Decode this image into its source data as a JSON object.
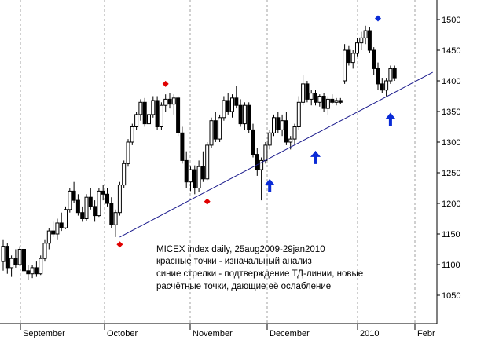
{
  "chart_data": {
    "type": "candlestick",
    "annotations": [
      "MICEX index daily, 25aug2009-29jan2010",
      "красные точки - изначальный анализ",
      "синие стрелки - подтверждение ТД-линии, новые",
      "расчётные точки, дающие её ослабление"
    ],
    "y_axis": {
      "ticks": [
        1050,
        1100,
        1150,
        1200,
        1250,
        1300,
        1350,
        1400,
        1450,
        1500
      ],
      "ylim": [
        1000,
        1540
      ],
      "side": "right"
    },
    "x_axis": {
      "month_labels": [
        "September",
        "October",
        "November",
        "December",
        "2010",
        "Febr"
      ]
    },
    "grid": "vertical dashed lines at month boundaries",
    "colors": {
      "up": "#ffffff",
      "down": "#000000",
      "trendline": "#1a1a8c",
      "red_marker": "#e00000",
      "blue_arrow": "#0a2bd6"
    },
    "candles": [
      {
        "o": 1105,
        "h": 1140,
        "l": 1090,
        "c": 1130
      },
      {
        "o": 1130,
        "h": 1135,
        "l": 1085,
        "c": 1095
      },
      {
        "o": 1095,
        "h": 1115,
        "l": 1080,
        "c": 1110
      },
      {
        "o": 1110,
        "h": 1125,
        "l": 1095,
        "c": 1100
      },
      {
        "o": 1100,
        "h": 1130,
        "l": 1098,
        "c": 1125
      },
      {
        "o": 1125,
        "h": 1128,
        "l": 1085,
        "c": 1090
      },
      {
        "o": 1090,
        "h": 1100,
        "l": 1075,
        "c": 1085
      },
      {
        "o": 1085,
        "h": 1100,
        "l": 1078,
        "c": 1095
      },
      {
        "o": 1095,
        "h": 1105,
        "l": 1080,
        "c": 1085
      },
      {
        "o": 1085,
        "h": 1115,
        "l": 1083,
        "c": 1110
      },
      {
        "o": 1110,
        "h": 1140,
        "l": 1105,
        "c": 1135
      },
      {
        "o": 1135,
        "h": 1160,
        "l": 1125,
        "c": 1155
      },
      {
        "o": 1155,
        "h": 1170,
        "l": 1145,
        "c": 1150
      },
      {
        "o": 1150,
        "h": 1175,
        "l": 1140,
        "c": 1168
      },
      {
        "o": 1168,
        "h": 1185,
        "l": 1155,
        "c": 1160
      },
      {
        "o": 1160,
        "h": 1195,
        "l": 1158,
        "c": 1190
      },
      {
        "o": 1190,
        "h": 1225,
        "l": 1185,
        "c": 1220
      },
      {
        "o": 1220,
        "h": 1235,
        "l": 1200,
        "c": 1205
      },
      {
        "o": 1205,
        "h": 1215,
        "l": 1180,
        "c": 1185
      },
      {
        "o": 1185,
        "h": 1195,
        "l": 1170,
        "c": 1175
      },
      {
        "o": 1175,
        "h": 1215,
        "l": 1172,
        "c": 1210
      },
      {
        "o": 1210,
        "h": 1225,
        "l": 1190,
        "c": 1195
      },
      {
        "o": 1195,
        "h": 1205,
        "l": 1170,
        "c": 1180
      },
      {
        "o": 1180,
        "h": 1225,
        "l": 1178,
        "c": 1220
      },
      {
        "o": 1220,
        "h": 1230,
        "l": 1205,
        "c": 1215
      },
      {
        "o": 1215,
        "h": 1225,
        "l": 1195,
        "c": 1200
      },
      {
        "o": 1200,
        "h": 1210,
        "l": 1160,
        "c": 1165
      },
      {
        "o": 1165,
        "h": 1190,
        "l": 1145,
        "c": 1185
      },
      {
        "o": 1185,
        "h": 1235,
        "l": 1180,
        "c": 1230
      },
      {
        "o": 1230,
        "h": 1270,
        "l": 1225,
        "c": 1265
      },
      {
        "o": 1265,
        "h": 1305,
        "l": 1260,
        "c": 1300
      },
      {
        "o": 1300,
        "h": 1330,
        "l": 1295,
        "c": 1325
      },
      {
        "o": 1325,
        "h": 1350,
        "l": 1320,
        "c": 1345
      },
      {
        "o": 1345,
        "h": 1370,
        "l": 1335,
        "c": 1365
      },
      {
        "o": 1365,
        "h": 1372,
        "l": 1325,
        "c": 1330
      },
      {
        "o": 1330,
        "h": 1350,
        "l": 1315,
        "c": 1345
      },
      {
        "o": 1345,
        "h": 1375,
        "l": 1340,
        "c": 1368
      },
      {
        "o": 1368,
        "h": 1375,
        "l": 1320,
        "c": 1325
      },
      {
        "o": 1325,
        "h": 1365,
        "l": 1320,
        "c": 1360
      },
      {
        "o": 1360,
        "h": 1378,
        "l": 1350,
        "c": 1370
      },
      {
        "o": 1370,
        "h": 1380,
        "l": 1355,
        "c": 1362
      },
      {
        "o": 1362,
        "h": 1378,
        "l": 1345,
        "c": 1372
      },
      {
        "o": 1372,
        "h": 1375,
        "l": 1310,
        "c": 1315
      },
      {
        "o": 1315,
        "h": 1325,
        "l": 1265,
        "c": 1270
      },
      {
        "o": 1270,
        "h": 1285,
        "l": 1225,
        "c": 1235
      },
      {
        "o": 1235,
        "h": 1260,
        "l": 1220,
        "c": 1255
      },
      {
        "o": 1255,
        "h": 1262,
        "l": 1215,
        "c": 1225
      },
      {
        "o": 1225,
        "h": 1270,
        "l": 1218,
        "c": 1260
      },
      {
        "o": 1260,
        "h": 1285,
        "l": 1235,
        "c": 1240
      },
      {
        "o": 1240,
        "h": 1300,
        "l": 1238,
        "c": 1295
      },
      {
        "o": 1295,
        "h": 1340,
        "l": 1290,
        "c": 1335
      },
      {
        "o": 1335,
        "h": 1350,
        "l": 1300,
        "c": 1305
      },
      {
        "o": 1305,
        "h": 1345,
        "l": 1300,
        "c": 1340
      },
      {
        "o": 1340,
        "h": 1375,
        "l": 1335,
        "c": 1368
      },
      {
        "o": 1368,
        "h": 1380,
        "l": 1345,
        "c": 1350
      },
      {
        "o": 1350,
        "h": 1378,
        "l": 1340,
        "c": 1372
      },
      {
        "o": 1372,
        "h": 1392,
        "l": 1355,
        "c": 1360
      },
      {
        "o": 1360,
        "h": 1370,
        "l": 1325,
        "c": 1330
      },
      {
        "o": 1330,
        "h": 1365,
        "l": 1320,
        "c": 1360
      },
      {
        "o": 1360,
        "h": 1365,
        "l": 1315,
        "c": 1320
      },
      {
        "o": 1320,
        "h": 1330,
        "l": 1275,
        "c": 1280
      },
      {
        "o": 1280,
        "h": 1290,
        "l": 1245,
        "c": 1255
      },
      {
        "o": 1255,
        "h": 1275,
        "l": 1205,
        "c": 1270
      },
      {
        "o": 1270,
        "h": 1300,
        "l": 1265,
        "c": 1295
      },
      {
        "o": 1295,
        "h": 1320,
        "l": 1288,
        "c": 1315
      },
      {
        "o": 1315,
        "h": 1345,
        "l": 1310,
        "c": 1340
      },
      {
        "o": 1340,
        "h": 1350,
        "l": 1315,
        "c": 1320
      },
      {
        "o": 1320,
        "h": 1345,
        "l": 1310,
        "c": 1335
      },
      {
        "o": 1335,
        "h": 1350,
        "l": 1295,
        "c": 1300
      },
      {
        "o": 1300,
        "h": 1310,
        "l": 1288,
        "c": 1305
      },
      {
        "o": 1305,
        "h": 1330,
        "l": 1295,
        "c": 1325
      },
      {
        "o": 1325,
        "h": 1375,
        "l": 1320,
        "c": 1365
      },
      {
        "o": 1365,
        "h": 1410,
        "l": 1360,
        "c": 1395
      },
      {
        "o": 1395,
        "h": 1400,
        "l": 1365,
        "c": 1370
      },
      {
        "o": 1370,
        "h": 1385,
        "l": 1360,
        "c": 1380
      },
      {
        "o": 1380,
        "h": 1385,
        "l": 1360,
        "c": 1365
      },
      {
        "o": 1365,
        "h": 1378,
        "l": 1358,
        "c": 1375
      },
      {
        "o": 1375,
        "h": 1380,
        "l": 1350,
        "c": 1355
      },
      {
        "o": 1355,
        "h": 1375,
        "l": 1345,
        "c": 1370
      },
      {
        "o": 1370,
        "h": 1378,
        "l": 1362,
        "c": 1365
      },
      {
        "o": 1365,
        "h": 1372,
        "l": 1360,
        "c": 1368
      },
      {
        "o": 1368,
        "h": 1372,
        "l": 1362,
        "c": 1365
      },
      {
        "o": 1400,
        "h": 1460,
        "l": 1395,
        "c": 1450
      },
      {
        "o": 1450,
        "h": 1458,
        "l": 1425,
        "c": 1430
      },
      {
        "o": 1430,
        "h": 1450,
        "l": 1420,
        "c": 1445
      },
      {
        "o": 1445,
        "h": 1470,
        "l": 1440,
        "c": 1462
      },
      {
        "o": 1462,
        "h": 1480,
        "l": 1450,
        "c": 1470
      },
      {
        "o": 1470,
        "h": 1490,
        "l": 1460,
        "c": 1482
      },
      {
        "o": 1482,
        "h": 1488,
        "l": 1445,
        "c": 1450
      },
      {
        "o": 1450,
        "h": 1455,
        "l": 1410,
        "c": 1420
      },
      {
        "o": 1420,
        "h": 1430,
        "l": 1385,
        "c": 1395
      },
      {
        "o": 1395,
        "h": 1405,
        "l": 1380,
        "c": 1385
      },
      {
        "o": 1385,
        "h": 1405,
        "l": 1375,
        "c": 1400
      },
      {
        "o": 1400,
        "h": 1425,
        "l": 1395,
        "c": 1420
      },
      {
        "o": 1420,
        "h": 1425,
        "l": 1400,
        "c": 1405
      }
    ],
    "red_markers": [
      {
        "candle": 28,
        "value": 1133
      },
      {
        "candle": 39,
        "value": 1395
      },
      {
        "candle": 49,
        "value": 1203
      }
    ],
    "blue_marker": {
      "candle": 90,
      "value": 1502
    },
    "blue_arrows": [
      {
        "candle": 64,
        "value": 1240
      },
      {
        "candle": 75,
        "value": 1286
      },
      {
        "candle": 93,
        "value": 1348
      }
    ],
    "trendline": {
      "from": {
        "candle": 28,
        "value": 1145
      },
      "to": {
        "candle": 99,
        "value": 1405
      }
    }
  }
}
